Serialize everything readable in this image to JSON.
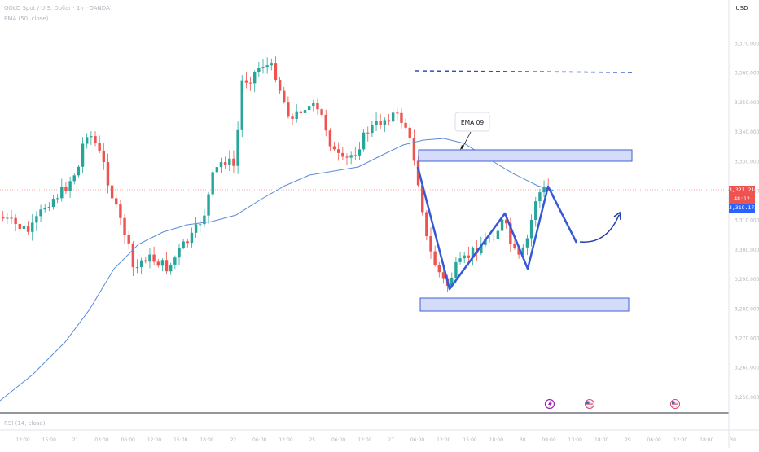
{
  "header": {
    "symbol": "GOLD Spot / U.S. Dollar · 1h · OANDA",
    "indicator": "EMA (50, close)",
    "currency": "USD"
  },
  "indicator_pane": {
    "label": "RSI (14, close)"
  },
  "price_scale": {
    "labels": [
      "3,370.000",
      "3,360.000",
      "3,350.000",
      "3,340.000",
      "3,330.000",
      "3,320.000",
      "3,310.000",
      "3,300.000",
      "3,290.000",
      "3,280.000",
      "3,270.000",
      "3,260.000",
      "3,250.000"
    ],
    "current_price": "3,321.210",
    "countdown": "48:12",
    "ema_price": "3,319.172"
  },
  "time_axis": {
    "labels": [
      "12:00",
      "15:00",
      "21",
      "03:00",
      "06:00",
      "12:00",
      "15:00",
      "18:00",
      "22",
      "06:00",
      "12:00",
      "25",
      "06:00",
      "12:00",
      "27",
      "06:00",
      "12:00",
      "15:00",
      "18:00",
      "30",
      "09:00",
      "13:00",
      "18:00",
      "29",
      "06:00",
      "12:00",
      "18:00",
      "30"
    ]
  },
  "annotation": {
    "label": "EMA 09"
  },
  "colors": {
    "up": "#26a69a",
    "down": "#ef5350",
    "ema": "#5b8bd6",
    "zone_fill": "#d4dcfa",
    "zone_stroke": "#3f5fd8",
    "path": "#3558d6",
    "dashed": "#2a4fbf",
    "arrow": "#1f3fa8"
  },
  "icons": [
    "lightning-icon",
    "us-flag-icon",
    "us-flag-icon"
  ]
}
